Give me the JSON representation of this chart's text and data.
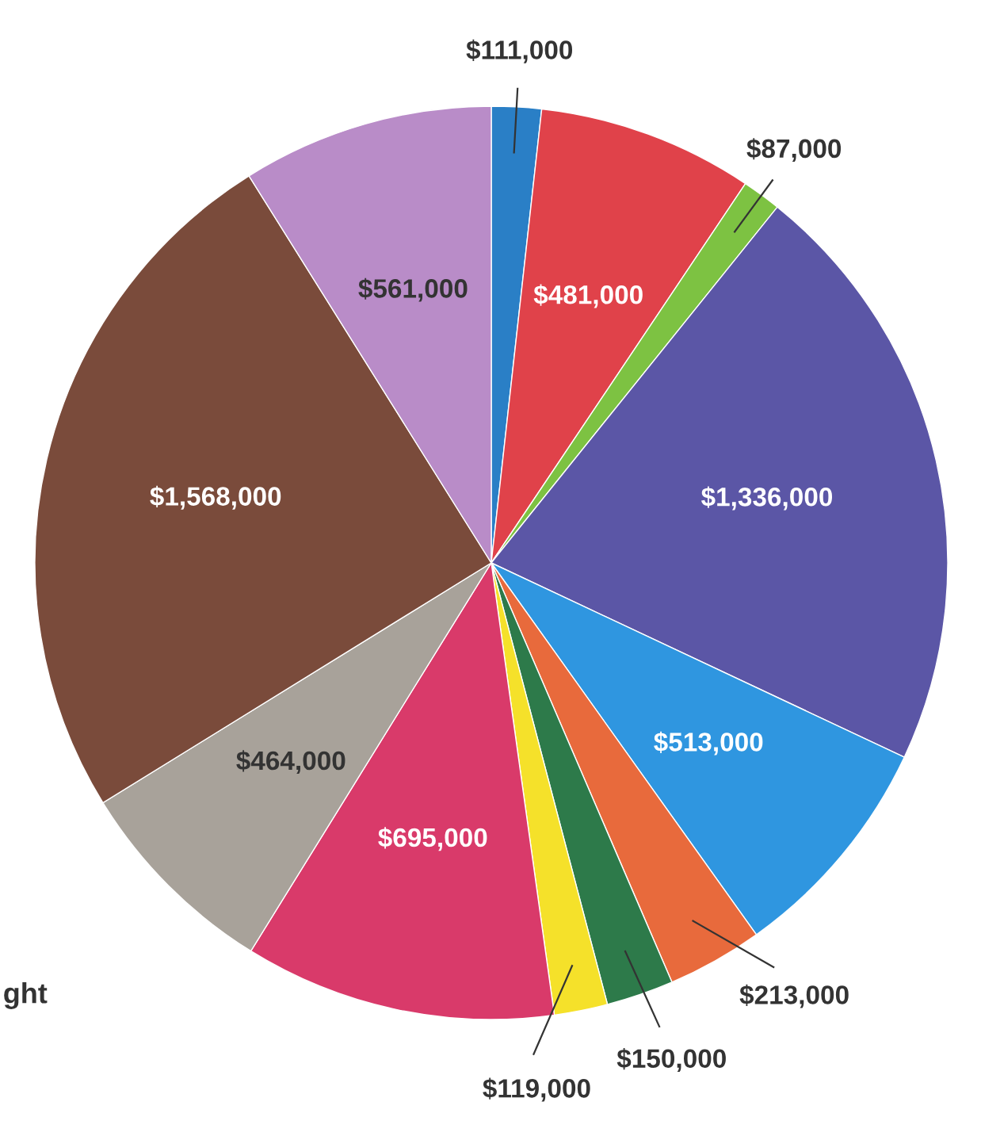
{
  "chart_data": {
    "type": "pie",
    "categories": [
      null,
      null,
      null,
      null,
      null,
      null,
      null,
      null,
      null,
      null,
      null,
      null
    ],
    "values": [
      111000,
      481000,
      87000,
      1336000,
      513000,
      213000,
      150000,
      119000,
      695000,
      464000,
      1568000,
      561000
    ],
    "value_labels": [
      "$111,000",
      "$481,000",
      "$87,000",
      "$1,336,000",
      "$513,000",
      "$213,000",
      "$150,000",
      "$119,000",
      "$695,000",
      "$464,000",
      "$1,568,000",
      "$561,000"
    ],
    "colors": [
      "#2a7fc6",
      "#e0424a",
      "#7dc242",
      "#5b56a6",
      "#2f96e0",
      "#e86a3c",
      "#2d7a4a",
      "#f5e12a",
      "#d93a6a",
      "#a8a29a",
      "#7a4b3b",
      "#b98cc8"
    ],
    "annotations": [
      "ght"
    ]
  }
}
